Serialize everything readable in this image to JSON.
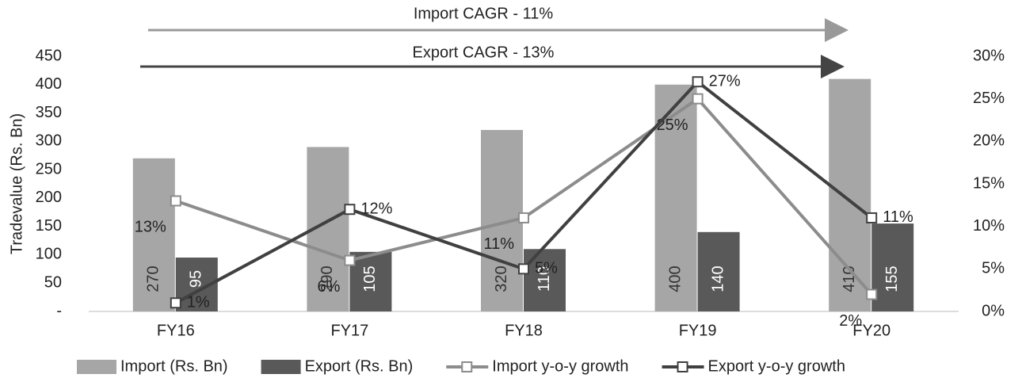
{
  "chart_data": {
    "type": "bar",
    "annotations": [
      "Import CAGR - 11%",
      "Export CAGR - 13%"
    ],
    "ylabel": "Tradevalue (Rs. Bn)",
    "categories": [
      "FY16",
      "FY17",
      "FY18",
      "FY19",
      "FY20"
    ],
    "series": [
      {
        "name": "Import (Rs. Bn)",
        "type": "bar",
        "color": "#a6a6a6",
        "values": [
          270,
          290,
          320,
          400,
          410
        ]
      },
      {
        "name": "Export (Rs. Bn)",
        "type": "bar",
        "color": "#595959",
        "values": [
          95,
          105,
          110,
          140,
          155
        ]
      },
      {
        "name": "Import y-o-y growth",
        "type": "line",
        "axis": "y2",
        "color": "#8c8c8c",
        "values": [
          13,
          6,
          11,
          25,
          2
        ],
        "value_labels": [
          "13%",
          "6%",
          "11%",
          "25%",
          "2%"
        ]
      },
      {
        "name": "Export y-o-y growth",
        "type": "line",
        "axis": "y2",
        "color": "#404040",
        "values": [
          1,
          12,
          5,
          27,
          11
        ],
        "value_labels": [
          "1%",
          "12%",
          "5%",
          "27%",
          "11%"
        ]
      }
    ],
    "ylim": [
      0,
      450
    ],
    "yticks": [
      {
        "value": 0,
        "label": "-"
      },
      50,
      100,
      150,
      200,
      250,
      300,
      350,
      400,
      450
    ],
    "y2lim": [
      0,
      30
    ],
    "y2ticks": [
      {
        "value": 0,
        "label": "0%"
      },
      {
        "value": 5,
        "label": "5%"
      },
      {
        "value": 10,
        "label": "10%"
      },
      {
        "value": 15,
        "label": "15%"
      },
      {
        "value": 20,
        "label": "20%"
      },
      {
        "value": 25,
        "label": "25%"
      },
      {
        "value": 30,
        "label": "30%"
      }
    ],
    "legend": "bottom"
  }
}
